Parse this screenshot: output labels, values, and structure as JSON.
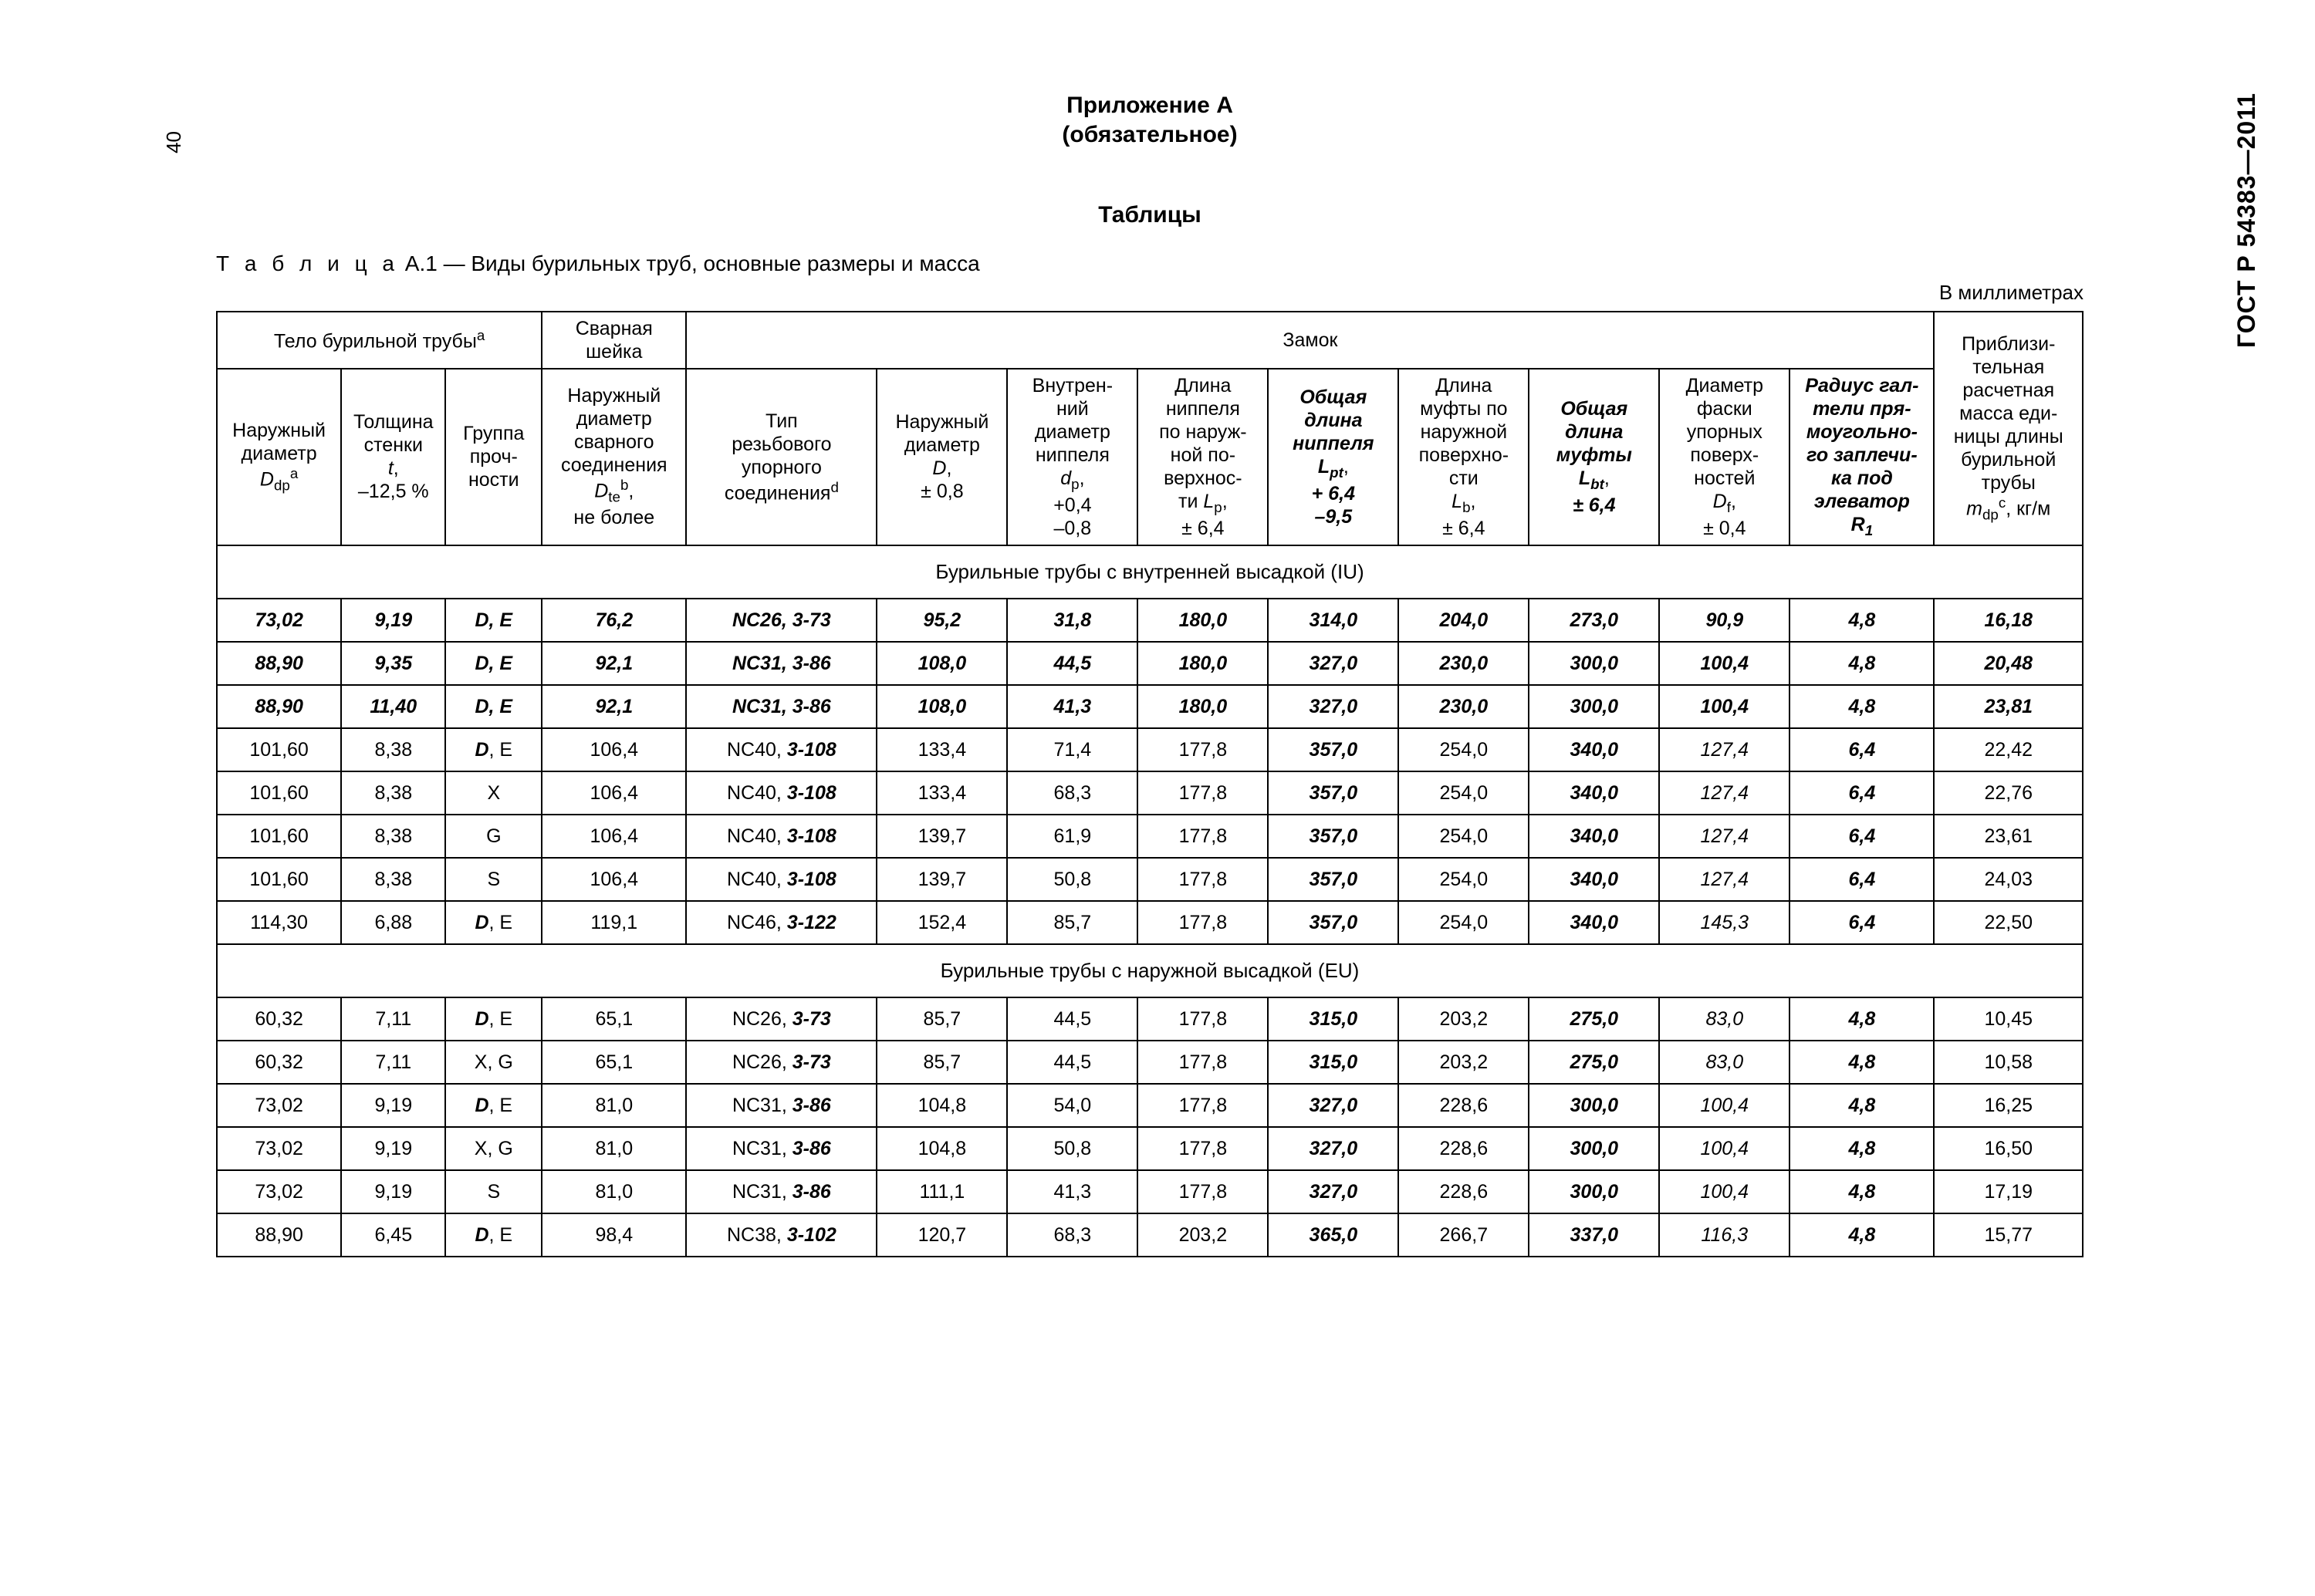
{
  "doc": {
    "standard": "ГОСТ Р 54383—2011",
    "page_number": "40",
    "appendix_title": "Приложение А",
    "appendix_mandatory": "(обязательное)",
    "tables_heading": "Таблицы",
    "table_caption_prefix": "Т а б л и ц а",
    "table_caption_rest": "  А.1 — Виды бурильных труб, основные размеры и масса",
    "units": "В миллиметрах"
  },
  "header": {
    "group_body": "Тело бурильной трубы",
    "group_body_sup": "a",
    "group_neck": "Сварная шейка",
    "group_lock": "Замок",
    "col_mass": {
      "l1": "Приблизи-",
      "l2": "тельная",
      "l3": "расчетная",
      "l4": "масса еди-",
      "l5": "ницы длины",
      "l6": "бурильной",
      "l7": "трубы",
      "sym": "m",
      "sub": "dp",
      "sup": "c",
      "unit": ", кг/м"
    },
    "c1": {
      "l1": "Наружный",
      "l2": "диаметр",
      "sym": "D",
      "sub": "dp",
      "sup": "a"
    },
    "c2": {
      "l1": "Толщина",
      "l2": "стенки",
      "sym": "t",
      "tol": "–12,5 %"
    },
    "c3": {
      "l1": "Группа",
      "l2": "проч-",
      "l3": "ности"
    },
    "c4": {
      "l1": "Наружный",
      "l2": "диаметр",
      "l3": "сварного",
      "l4": "соединения",
      "sym": "D",
      "sub": "te",
      "sup": "b",
      "note": "не более"
    },
    "c5": {
      "l1": "Тип",
      "l2": "резьбового",
      "l3": "упорного",
      "l4": "соединения",
      "sup": "d"
    },
    "c6": {
      "l1": "Наружный",
      "l2": "диаметр",
      "sym": "D",
      "tol": "± 0,8"
    },
    "c7": {
      "l1": "Внутрен-",
      "l2": "ний",
      "l3": "диаметр",
      "l4": "ниппеля",
      "sym": "d",
      "sub": "p",
      "tol1": "+0,4",
      "tol2": "–0,8"
    },
    "c8": {
      "l1": "Длина",
      "l2": "ниппеля",
      "l3": "по наруж-",
      "l4": "ной по-",
      "l5": "верхнос-",
      "l6": "ти ",
      "sym": "L",
      "sub": "p",
      "tol": "± 6,4"
    },
    "c9": {
      "l1": "Общая",
      "l2": "длина",
      "l3": "ниппеля",
      "sym": "L",
      "sub": "pt",
      "tol1": "+ 6,4",
      "tol2": "–9,5"
    },
    "c10": {
      "l1": "Длина",
      "l2": "муфты по",
      "l3": "наружной",
      "l4": "поверхно-",
      "l5": "сти",
      "sym": "L",
      "sub": "b",
      "tol": "± 6,4"
    },
    "c11": {
      "l1": "Общая",
      "l2": "длина",
      "l3": "муфты",
      "sym": "L",
      "sub": "bt",
      "tol": "± 6,4"
    },
    "c12": {
      "l1": "Диаметр",
      "l2": "фаски",
      "l3": "упорных",
      "l4": "поверх-",
      "l5": "ностей",
      "sym": "D",
      "sub": "f",
      "tol": "± 0,4"
    },
    "c13": {
      "l1": "Радиус гал-",
      "l2": "тели пря-",
      "l3": "моугольно-",
      "l4": "го заплечи-",
      "l5": "ка под",
      "l6": "элеватор",
      "sym": "R",
      "sub": "1"
    }
  },
  "sections": {
    "iu": "Бурильные трубы с внутренней высадкой (IU)",
    "eu": "Бурильные трубы с наружной высадкой (EU)"
  },
  "rows_iu": [
    {
      "c1": "73,02",
      "c2": "9,19",
      "c3": "D, E",
      "c4": "76,2",
      "c5a": "NC26, ",
      "c5b": "3-73",
      "c6": "95,2",
      "c7": "31,8",
      "c8": "180,0",
      "c9": "314,0",
      "c10": "204,0",
      "c11": "273,0",
      "c12": "90,9",
      "c13": "4,8",
      "c14": "16,18",
      "bold": true,
      "c3mix": false
    },
    {
      "c1": "88,90",
      "c2": "9,35",
      "c3": "D, E",
      "c4": "92,1",
      "c5a": "NC31, ",
      "c5b": "3-86",
      "c6": "108,0",
      "c7": "44,5",
      "c8": "180,0",
      "c9": "327,0",
      "c10": "230,0",
      "c11": "300,0",
      "c12": "100,4",
      "c13": "4,8",
      "c14": "20,48",
      "bold": true,
      "c3mix": false
    },
    {
      "c1": "88,90",
      "c2": "11,40",
      "c3": "D, E",
      "c4": "92,1",
      "c5a": "NC31, ",
      "c5b": "3-86",
      "c6": "108,0",
      "c7": "41,3",
      "c8": "180,0",
      "c9": "327,0",
      "c10": "230,0",
      "c11": "300,0",
      "c12": "100,4",
      "c13": "4,8",
      "c14": "23,81",
      "bold": true,
      "c3mix": false
    },
    {
      "c1": "101,60",
      "c2": "8,38",
      "c3b": "D",
      "c3r": ", E",
      "c4": "106,4",
      "c5a": "NC40, ",
      "c5b": "3-108",
      "c6": "133,4",
      "c7": "71,4",
      "c8": "177,8",
      "c9": "357,0",
      "c10": "254,0",
      "c11": "340,0",
      "c12": "127,4",
      "c13": "6,4",
      "c14": "22,42",
      "bold": false,
      "c3mix": true
    },
    {
      "c1": "101,60",
      "c2": "8,38",
      "c3": "X",
      "c4": "106,4",
      "c5a": "NC40, ",
      "c5b": "3-108",
      "c6": "133,4",
      "c7": "68,3",
      "c8": "177,8",
      "c9": "357,0",
      "c10": "254,0",
      "c11": "340,0",
      "c12": "127,4",
      "c13": "6,4",
      "c14": "22,76",
      "bold": false,
      "c3mix": false
    },
    {
      "c1": "101,60",
      "c2": "8,38",
      "c3": "G",
      "c4": "106,4",
      "c5a": "NC40, ",
      "c5b": "3-108",
      "c6": "139,7",
      "c7": "61,9",
      "c8": "177,8",
      "c9": "357,0",
      "c10": "254,0",
      "c11": "340,0",
      "c12": "127,4",
      "c13": "6,4",
      "c14": "23,61",
      "bold": false,
      "c3mix": false
    },
    {
      "c1": "101,60",
      "c2": "8,38",
      "c3": "S",
      "c4": "106,4",
      "c5a": "NC40, ",
      "c5b": "3-108",
      "c6": "139,7",
      "c7": "50,8",
      "c8": "177,8",
      "c9": "357,0",
      "c10": "254,0",
      "c11": "340,0",
      "c12": "127,4",
      "c13": "6,4",
      "c14": "24,03",
      "bold": false,
      "c3mix": false
    },
    {
      "c1": "114,30",
      "c2": "6,88",
      "c3b": "D",
      "c3r": ", E",
      "c4": "119,1",
      "c5a": "NC46, ",
      "c5b": "3-122",
      "c6": "152,4",
      "c7": "85,7",
      "c8": "177,8",
      "c9": "357,0",
      "c10": "254,0",
      "c11": "340,0",
      "c12": "145,3",
      "c13": "6,4",
      "c14": "22,50",
      "bold": false,
      "c3mix": true
    }
  ],
  "rows_eu": [
    {
      "c1": "60,32",
      "c2": "7,11",
      "c3b": "D",
      "c3r": ", E",
      "c4": "65,1",
      "c5a": "NC26, ",
      "c5b": "3-73",
      "c6": "85,7",
      "c7": "44,5",
      "c8": "177,8",
      "c9": "315,0",
      "c10": "203,2",
      "c11": "275,0",
      "c12": "83,0",
      "c13": "4,8",
      "c14": "10,45",
      "c3mix": true
    },
    {
      "c1": "60,32",
      "c2": "7,11",
      "c3": "X, G",
      "c4": "65,1",
      "c5a": "NC26, ",
      "c5b": "3-73",
      "c6": "85,7",
      "c7": "44,5",
      "c8": "177,8",
      "c9": "315,0",
      "c10": "203,2",
      "c11": "275,0",
      "c12": "83,0",
      "c13": "4,8",
      "c14": "10,58",
      "c3mix": false
    },
    {
      "c1": "73,02",
      "c2": "9,19",
      "c3b": "D",
      "c3r": ", E",
      "c4": "81,0",
      "c5a": "NC31, ",
      "c5b": "3-86",
      "c6": "104,8",
      "c7": "54,0",
      "c8": "177,8",
      "c9": "327,0",
      "c10": "228,6",
      "c11": "300,0",
      "c12": "100,4",
      "c13": "4,8",
      "c14": "16,25",
      "c3mix": true
    },
    {
      "c1": "73,02",
      "c2": "9,19",
      "c3": "X, G",
      "c4": "81,0",
      "c5a": "NC31, ",
      "c5b": "3-86",
      "c6": "104,8",
      "c7": "50,8",
      "c8": "177,8",
      "c9": "327,0",
      "c10": "228,6",
      "c11": "300,0",
      "c12": "100,4",
      "c13": "4,8",
      "c14": "16,50",
      "c3mix": false
    },
    {
      "c1": "73,02",
      "c2": "9,19",
      "c3": "S",
      "c4": "81,0",
      "c5a": "NC31, ",
      "c5b": "3-86",
      "c6": "111,1",
      "c7": "41,3",
      "c8": "177,8",
      "c9": "327,0",
      "c10": "228,6",
      "c11": "300,0",
      "c12": "100,4",
      "c13": "4,8",
      "c14": "17,19",
      "c3mix": false
    },
    {
      "c1": "88,90",
      "c2": "6,45",
      "c3b": "D",
      "c3r": ", E",
      "c4": "98,4",
      "c5a": "NC38, ",
      "c5b": "3-102",
      "c6": "120,7",
      "c7": "68,3",
      "c8": "203,2",
      "c9": "365,0",
      "c10": "266,7",
      "c11": "337,0",
      "c12": "116,3",
      "c13": "4,8",
      "c14": "15,77",
      "c3mix": true
    }
  ]
}
